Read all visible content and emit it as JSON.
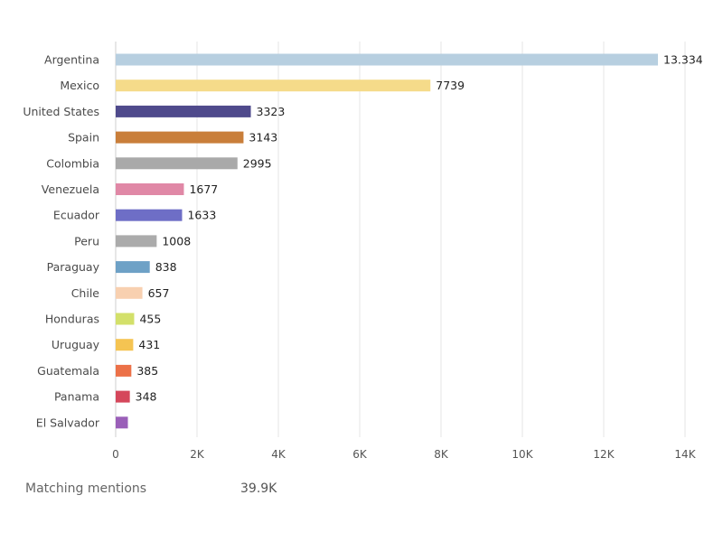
{
  "chart_data": {
    "type": "bar",
    "orientation": "horizontal",
    "categories": [
      "Argentina",
      "Mexico",
      "United States",
      "Spain",
      "Colombia",
      "Venezuela",
      "Ecuador",
      "Peru",
      "Paraguay",
      "Chile",
      "Honduras",
      "Uruguay",
      "Guatemala",
      "Panama",
      "El Salvador"
    ],
    "values": [
      13334,
      7739,
      3323,
      3143,
      2995,
      1677,
      1633,
      1008,
      838,
      657,
      455,
      431,
      385,
      348,
      300
    ],
    "data_labels": [
      "13.334",
      "7739",
      "3323",
      "3143",
      "2995",
      "1677",
      "1633",
      "1008",
      "838",
      "657",
      "455",
      "431",
      "385",
      "348",
      ""
    ],
    "colors": [
      "#b7cfe0",
      "#f5db8a",
      "#4f4a8c",
      "#c97e3a",
      "#a9a9a9",
      "#e088a6",
      "#6e6ec6",
      "#ababab",
      "#6ea1c6",
      "#f8d0b0",
      "#d3e06a",
      "#f5c452",
      "#ec7148",
      "#d5475b",
      "#9a5fb8"
    ],
    "xlim": [
      0,
      14000
    ],
    "xticks": [
      0,
      2000,
      4000,
      6000,
      8000,
      10000,
      12000,
      14000
    ],
    "xtick_labels": [
      "0",
      "2K",
      "4K",
      "6K",
      "8K",
      "10K",
      "12K",
      "14K"
    ],
    "grid": "vertical",
    "title": "",
    "xlabel": "",
    "ylabel": ""
  },
  "footer": {
    "label": "Matching mentions",
    "value": "39.9K"
  }
}
